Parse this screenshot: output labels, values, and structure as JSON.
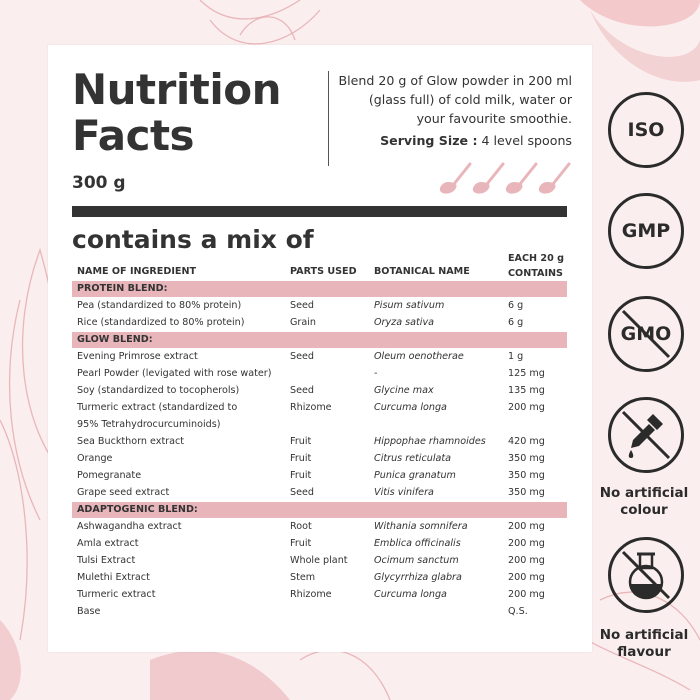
{
  "title": "Nutrition Facts",
  "net_weight": "300 g",
  "instructions": "Blend 20 g of Glow powder in 200 ml (glass full) of cold milk, water or your favourite smoothie.",
  "serving": {
    "label": "Serving Size :",
    "value": "4 level spoons"
  },
  "mix_heading": "contains a mix of",
  "columns": [
    "NAME OF INGREDIENT",
    "PARTS USED",
    "BOTANICAL NAME",
    "EACH 20 g CONTAINS"
  ],
  "sections": [
    {
      "name": "PROTEIN BLEND:",
      "rows": [
        [
          "Pea (standardized to 80% protein)",
          "Seed",
          "Pisum sativum",
          "6 g"
        ],
        [
          "Rice (standardized to 80% protein)",
          "Grain",
          "Oryza sativa",
          "6 g"
        ]
      ]
    },
    {
      "name": "GLOW BLEND:",
      "rows": [
        [
          "Evening Primrose extract",
          "Seed",
          "Oleum oenotherae",
          "1 g"
        ],
        [
          "Pearl Powder (levigated with rose water)",
          "",
          "-",
          "125 mg"
        ],
        [
          "Soy (standardized to tocopherols)",
          "Seed",
          "Glycine max",
          "135 mg"
        ],
        [
          "Turmeric extract (standardized to",
          "Rhizome",
          "Curcuma longa",
          "200 mg"
        ],
        [
          "95% Tetrahydrocurcuminoids)",
          "",
          "",
          ""
        ],
        [
          "Sea Buckthorn extract",
          "Fruit",
          "Hippophae rhamnoides",
          "420 mg"
        ],
        [
          "Orange",
          "Fruit",
          "Citrus reticulata",
          "350 mg"
        ],
        [
          "Pomegranate",
          "Fruit",
          "Punica granatum",
          "350 mg"
        ],
        [
          "Grape seed extract",
          "Seed",
          "Vitis vinifera",
          "350 mg"
        ]
      ]
    },
    {
      "name": "ADAPTOGENIC BLEND:",
      "rows": [
        [
          "Ashwagandha extract",
          "Root",
          "Withania somnifera",
          "200 mg"
        ],
        [
          "Amla extract",
          "Fruit",
          "Emblica officinalis",
          "200 mg"
        ],
        [
          "Tulsi Extract",
          "Whole plant",
          "Ocimum sanctum",
          "200 mg"
        ],
        [
          "Mulethi Extract",
          "Stem",
          "Glycyrrhiza glabra",
          "200 mg"
        ],
        [
          "Turmeric extract",
          "Rhizome",
          "Curcuma longa",
          "200 mg"
        ],
        [
          "Base",
          "",
          "",
          "Q.S."
        ]
      ]
    }
  ],
  "badges": [
    {
      "text": "ISO",
      "icon": "iso-badge-icon"
    },
    {
      "text": "GMP",
      "icon": "gmp-badge-icon"
    },
    {
      "text": "GMO",
      "icon": "no-gmo-badge-icon"
    },
    {
      "text": "",
      "label": "No artificial colour",
      "icon": "no-dropper-icon"
    },
    {
      "text": "",
      "label": "No artificial flavour",
      "icon": "flask-icon"
    }
  ],
  "colors": {
    "accent": "#e8b6ba",
    "background": "#fbeeee",
    "dark": "#2b2b2b"
  }
}
